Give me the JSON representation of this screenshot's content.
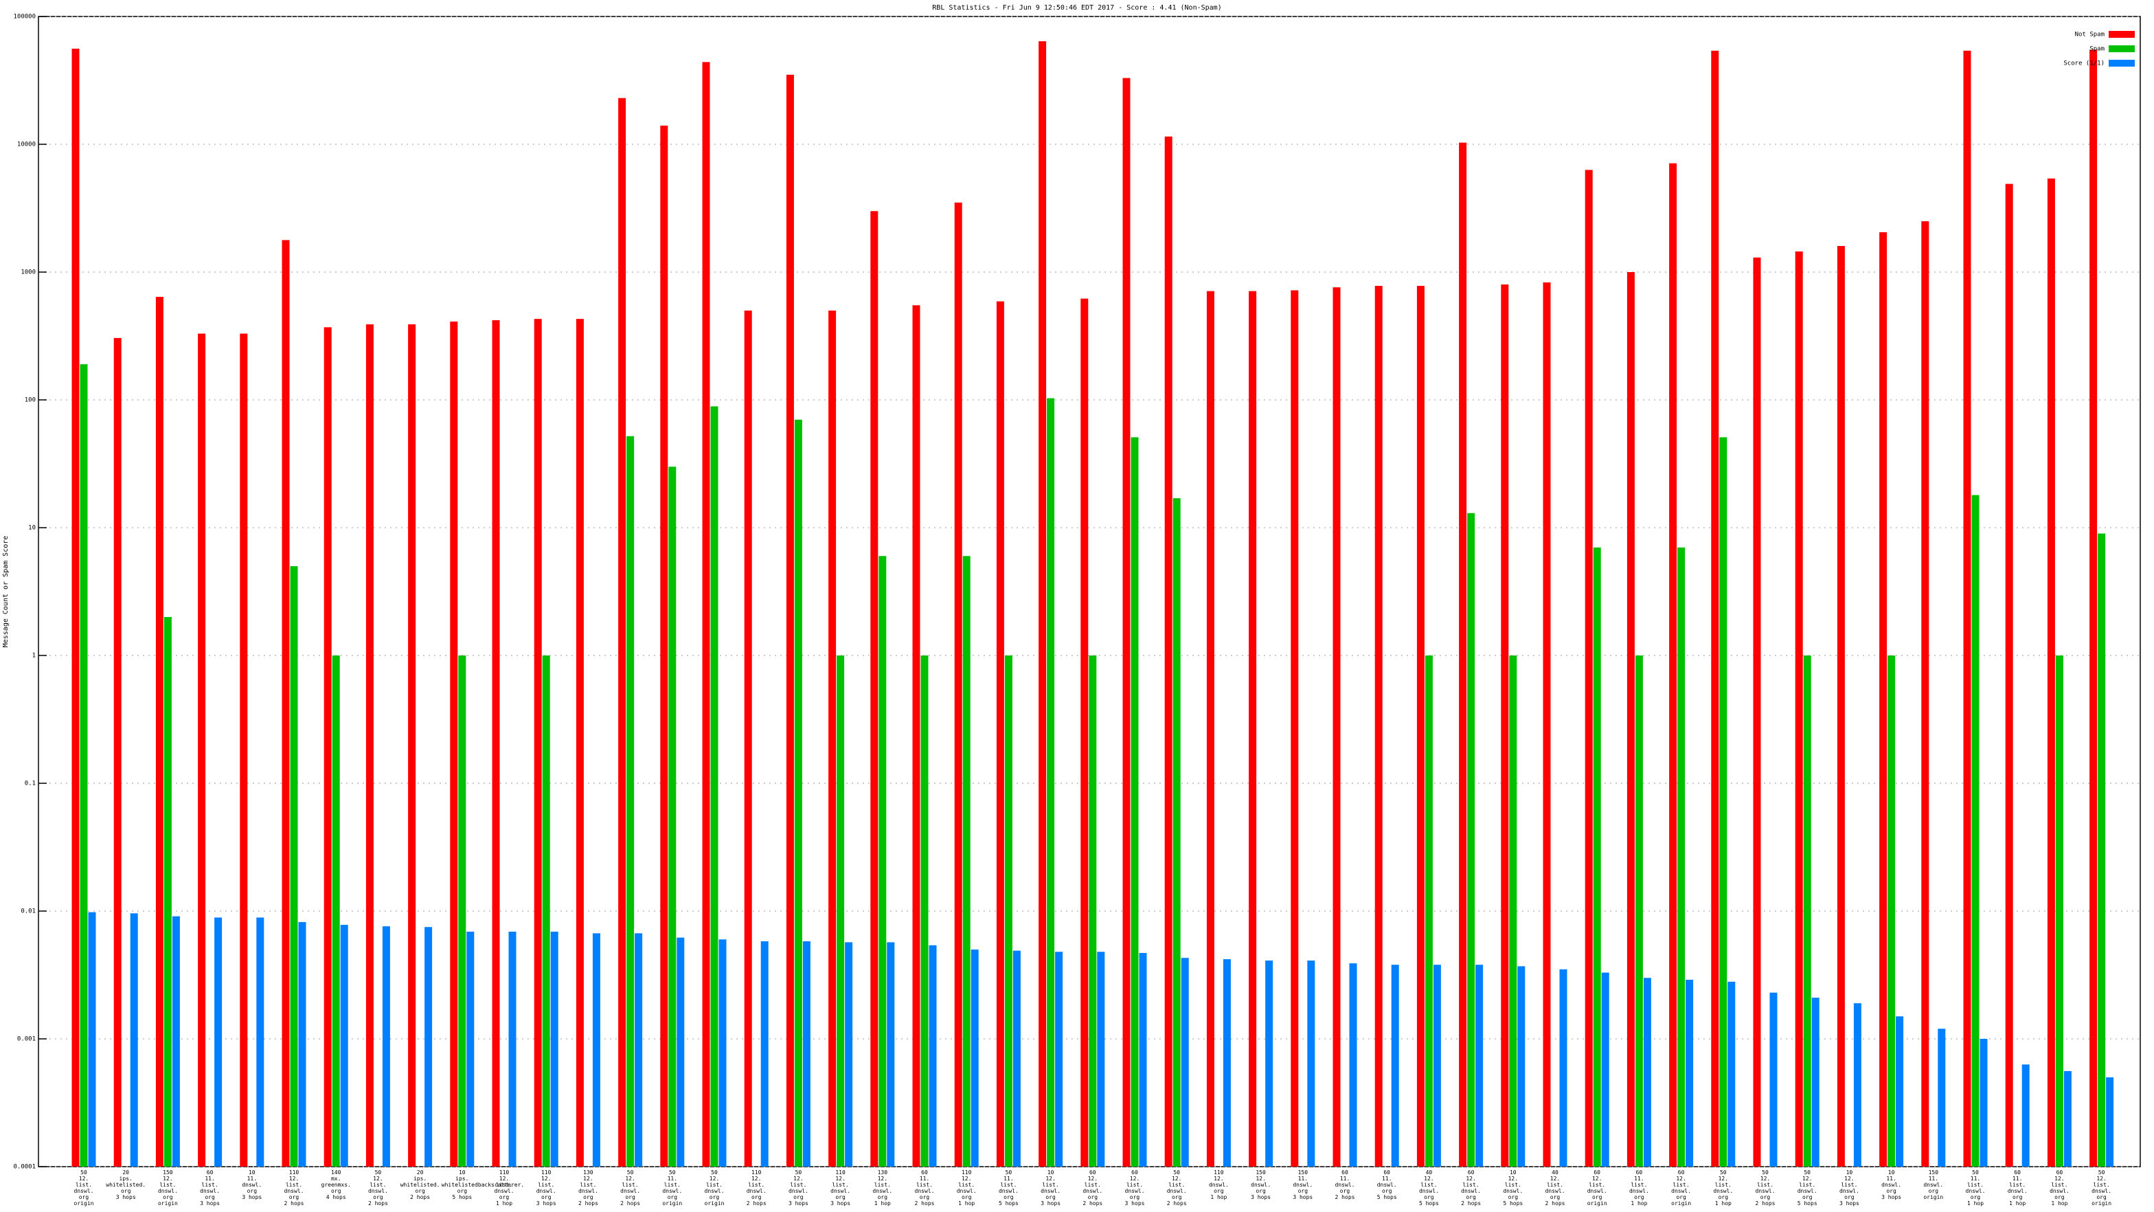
{
  "chart_data": {
    "type": "bar",
    "title": "RBL Statistics - Fri Jun  9 12:50:46 EDT 2017 - Score : 4.41 (Non-Spam)",
    "y_label": "Message Count or Spam Score",
    "log_scale": true,
    "grid": true,
    "legend": "top-right",
    "ylim": [
      0.0001,
      100000
    ],
    "yticks": [
      0.0001,
      0.001,
      0.01,
      0.1,
      1,
      10,
      100,
      1000,
      10000,
      100000
    ],
    "categories": [
      "50\n12.\nlist.\ndnswl.\norg\norigin",
      "20\nips.\nwhitelisted.\norg\n3 hops",
      "150\n12.\nlist.\ndnswl.\norg\norigin",
      "60\n11.\nlist.\ndnswl.\norg\n3 hops",
      "10\n11.\ndnswl.\norg\n3 hops",
      "110\n12.\nlist.\ndnswl.\norg\n2 hops",
      "140\nmx.\ngreenmxs.\norg\n4 hops",
      "50\n12.\nlist.\ndnswl.\norg\n2 hops",
      "20\nips.\nwhitelisted.\norg\n2 hops",
      "10\nips.\nwhitelistedbackscatterer.\norg\n5 hops",
      "110\n12.\nlist.\ndnswl.\norg\n1 hop",
      "110\n12.\nlist.\ndnswl.\norg\n3 hops",
      "130\n12.\nlist.\ndnswl.\norg\n2 hops",
      "50\n12.\nlist.\ndnswl.\norg\n2 hops",
      "50\n11.\nlist.\ndnswl.\norg\norigin",
      "50\n12.\nlist.\ndnswl.\norg\norigin",
      "110\n12.\nlist.\ndnswl.\norg\n2 hops",
      "50\n12.\nlist.\ndnswl.\norg\n3 hops",
      "110\n12.\nlist.\ndnswl.\norg\n3 hops",
      "130\n12.\nlist.\ndnswl.\norg\n1 hop",
      "60\n11.\nlist.\ndnswl.\norg\n2 hops",
      "110\n12.\nlist.\ndnswl.\norg\n1 hop",
      "50\n11.\nlist.\ndnswl.\norg\n5 hops",
      "10\n12.\nlist.\ndnswl.\norg\n3 hops",
      "60\n12.\nlist.\ndnswl.\norg\n2 hops",
      "60\n12.\nlist.\ndnswl.\norg\n3 hops",
      "50\n12.\nlist.\ndnswl.\norg\n2 hops",
      "110\n12.\ndnswl.\norg\n1 hop",
      "150\n12.\ndnswl.\norg\n3 hops",
      "150\n11.\ndnswl.\norg\n3 hops",
      "60\n11.\ndnswl.\norg\n2 hops",
      "60\n11.\ndnswl.\norg\n5 hops",
      "40\n12.\nlist.\ndnswl.\norg\n5 hops",
      "60\n12.\nlist.\ndnswl.\norg\n2 hops",
      "10\n12.\nlist.\ndnswl.\norg\n5 hops",
      "40\n12.\nlist.\ndnswl.\norg\n2 hops",
      "60\n12.\nlist.\ndnswl.\norg\norigin",
      "60\n11.\nlist.\ndnswl.\norg\n1 hop",
      "60\n12.\nlist.\ndnswl.\norg\norigin",
      "50\n12.\nlist.\ndnswl.\norg\n1 hop",
      "50\n12.\nlist.\ndnswl.\norg\n2 hops",
      "50\n12.\nlist.\ndnswl.\norg\n5 hops",
      "10\n12.\nlist.\ndnswl.\norg\n3 hops",
      "10\n11.\ndnswl.\norg\n3 hops",
      "150\n11.\ndnswl.\norg\norigin",
      "50\n11.\nlist.\ndnswl.\norg\n1 hop",
      "60\n11.\nlist.\ndnswl.\norg\n1 hop",
      "60\n12.\nlist.\ndnswl.\norg\n1 hop",
      "50\n12.\nlist.\ndnswl.\norg\norigin"
    ],
    "series": [
      {
        "name": "Not Spam",
        "color": "#ff0000",
        "values": [
          56000,
          305,
          640,
          330,
          330,
          1780,
          370,
          390,
          390,
          410,
          420,
          430,
          430,
          23000,
          14000,
          44000,
          500,
          35000,
          500,
          3000,
          550,
          3500,
          590,
          64000,
          620,
          33000,
          11500,
          710,
          710,
          720,
          760,
          780,
          780,
          10300,
          800,
          830,
          6300,
          1000,
          7100,
          54000,
          1300,
          1450,
          1600,
          2050,
          2500,
          54000,
          4900,
          5400,
          55000
        ]
      },
      {
        "name": "Spam",
        "color": "#00c000",
        "values": [
          190,
          null,
          2,
          null,
          null,
          5,
          1,
          null,
          null,
          1,
          null,
          1,
          null,
          52,
          30,
          89,
          null,
          70,
          1,
          6,
          1,
          6,
          1,
          103,
          1,
          51,
          17,
          null,
          null,
          null,
          null,
          null,
          1,
          13,
          1,
          null,
          7,
          1,
          7,
          51,
          null,
          1,
          null,
          1,
          null,
          18,
          null,
          1,
          9
        ]
      },
      {
        "name": "Score (1/1)",
        "color": "#0080ff",
        "values": [
          0.0098,
          0.0096,
          0.0091,
          0.0089,
          0.0089,
          0.0082,
          0.0078,
          0.0076,
          0.0075,
          0.0069,
          0.0069,
          0.0069,
          0.0067,
          0.0067,
          0.0062,
          0.006,
          0.0058,
          0.0058,
          0.0057,
          0.0057,
          0.0054,
          0.005,
          0.0049,
          0.0048,
          0.0048,
          0.0047,
          0.0043,
          0.0042,
          0.0041,
          0.0041,
          0.0039,
          0.0038,
          0.0038,
          0.0038,
          0.0037,
          0.0035,
          0.0033,
          0.003,
          0.0029,
          0.0028,
          0.0023,
          0.0021,
          0.0019,
          0.0015,
          0.0012,
          0.001,
          0.00063,
          0.00056,
          0.0005
        ]
      }
    ]
  }
}
